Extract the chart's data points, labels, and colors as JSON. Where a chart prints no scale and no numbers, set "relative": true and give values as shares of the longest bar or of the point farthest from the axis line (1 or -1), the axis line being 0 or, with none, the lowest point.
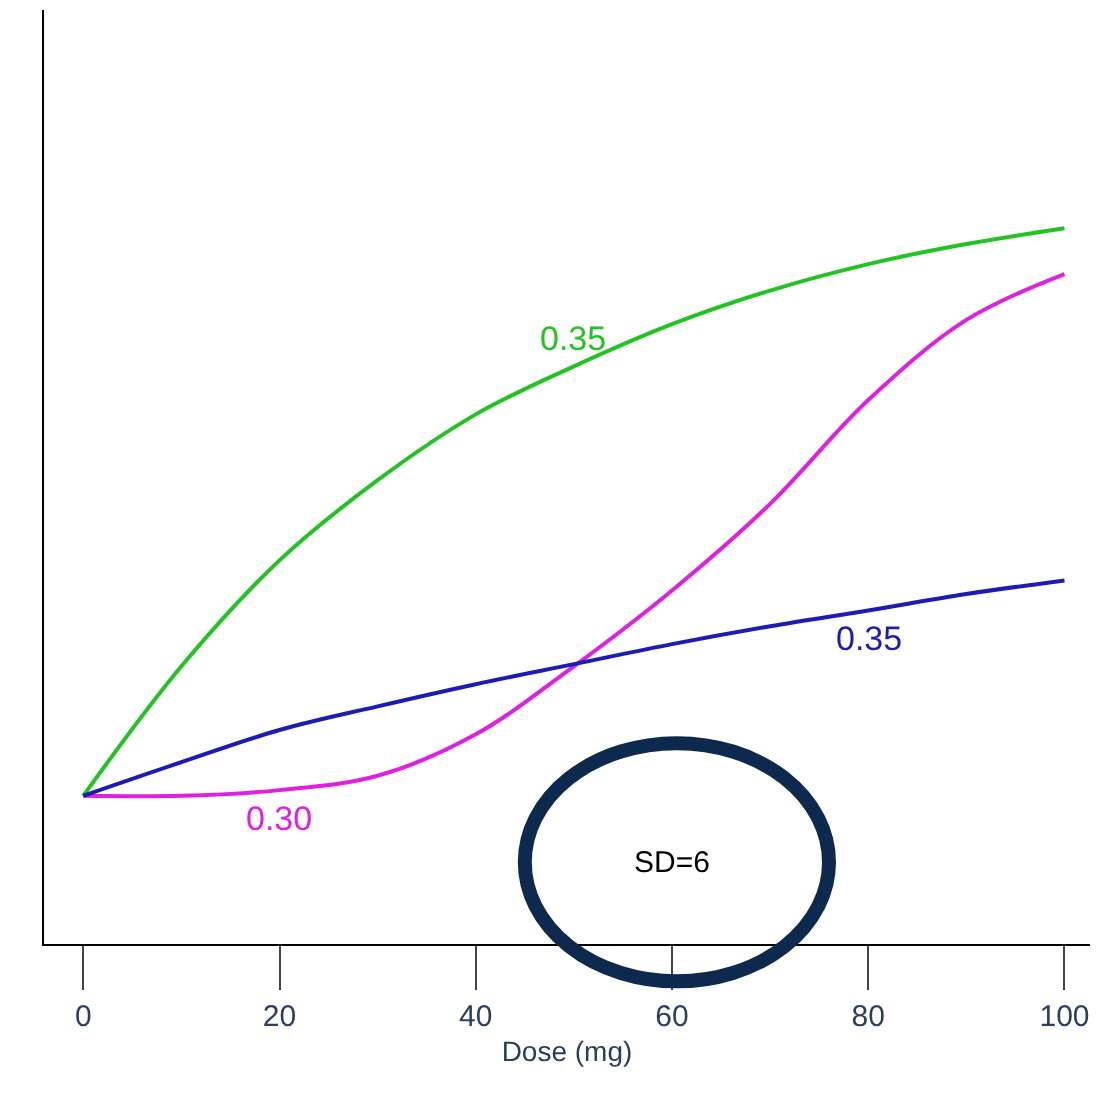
{
  "chart_data": {
    "type": "line",
    "relative": true,
    "xlabel": "Dose (mg)",
    "x": [
      0,
      10,
      20,
      30,
      40,
      50,
      60,
      70,
      80,
      90,
      100
    ],
    "xlim": [
      -4,
      102.6
    ],
    "xticks": [
      0,
      20,
      40,
      60,
      80,
      100
    ],
    "legend": false,
    "marker": "none",
    "line_style": "solid",
    "series": [
      {
        "name": "0.35",
        "color": "#22c322",
        "values": [
          0.207,
          0.388,
          0.536,
          0.648,
          0.74,
          0.807,
          0.866,
          0.913,
          0.95,
          0.978,
          1.0
        ]
      },
      {
        "name": "0.30",
        "color": "#e020e0",
        "values": [
          0.207,
          0.207,
          0.215,
          0.235,
          0.293,
          0.388,
          0.494,
          0.615,
          0.76,
          0.872,
          0.936
        ]
      },
      {
        "name": "0.35",
        "color": "#1c1cb4",
        "values": [
          0.207,
          0.254,
          0.299,
          0.332,
          0.363,
          0.391,
          0.419,
          0.444,
          0.466,
          0.489,
          0.508
        ]
      }
    ],
    "annotations": [
      "SD=6"
    ]
  }
}
